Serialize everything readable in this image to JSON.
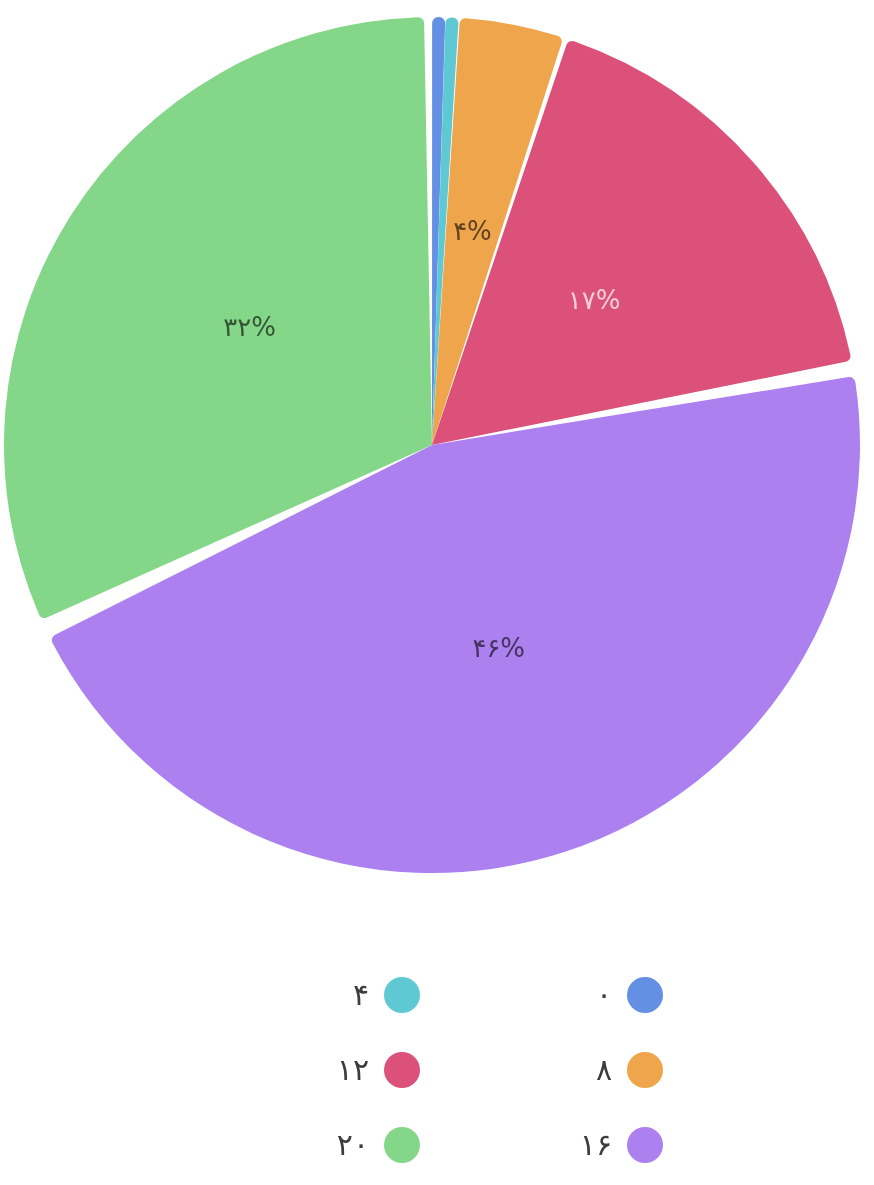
{
  "chart_data": {
    "type": "pie",
    "categories": [
      "۰",
      "۴",
      "۸",
      "۱۲",
      "۱۶",
      "۲۰"
    ],
    "values": [
      0.5,
      0.5,
      4,
      17,
      46,
      32
    ],
    "colors": [
      "#6490e4",
      "#5ec8d3",
      "#efa54b",
      "#db5179",
      "#ad80ef",
      "#84d788"
    ],
    "value_labels": [
      null,
      null,
      "۴%",
      "۱۷%",
      "۴۶%",
      "۳۲%"
    ],
    "legend": "bottom"
  }
}
